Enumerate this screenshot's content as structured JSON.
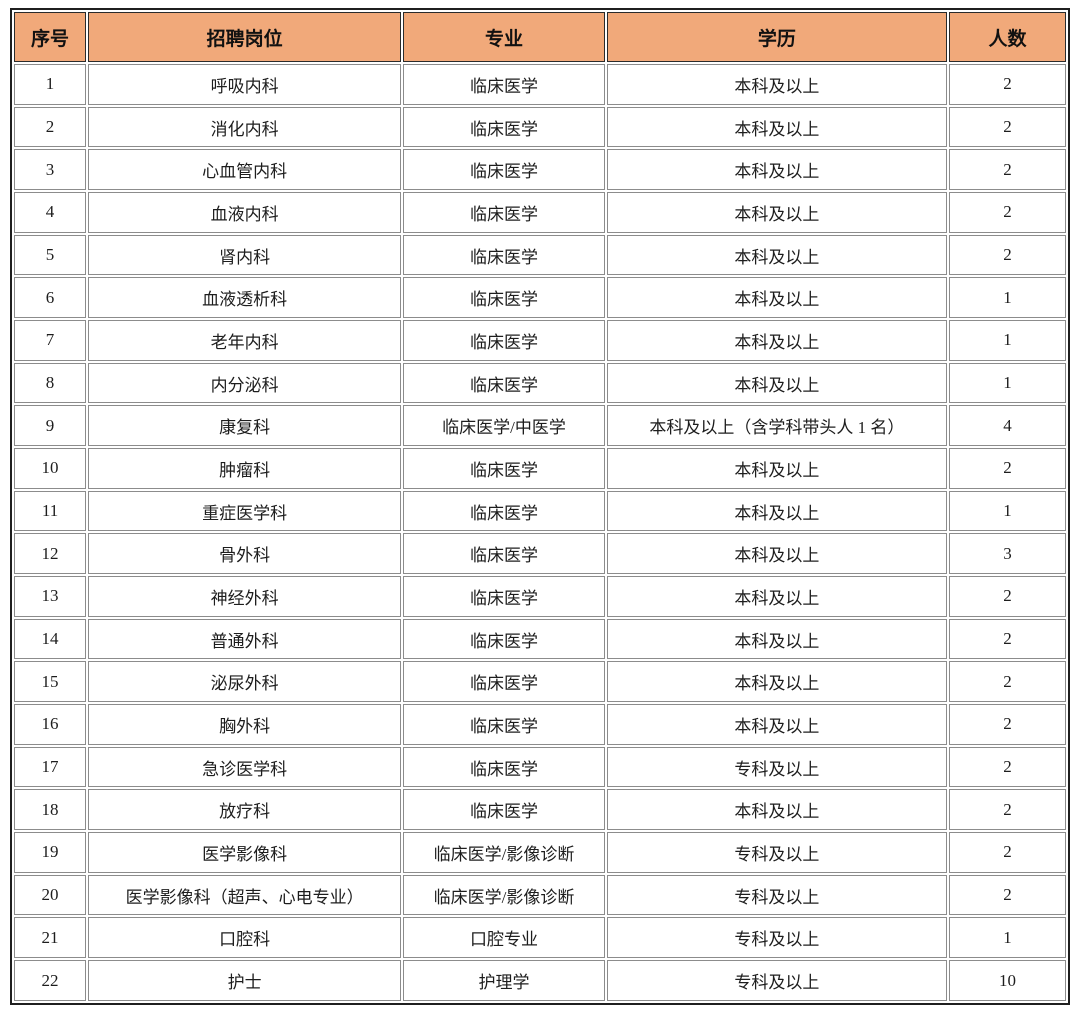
{
  "colors": {
    "header_bg": "#F1A97A",
    "outer_border": "#1f1f1f",
    "header_border": "#2b2b2b",
    "cell_border": "#8c8c8c",
    "text": "#1d1d1d"
  },
  "table": {
    "headers": {
      "no": "序号",
      "position": "招聘岗位",
      "major": "专业",
      "education": "学历",
      "count": "人数"
    },
    "rows": [
      {
        "no": "1",
        "position": "呼吸内科",
        "major": "临床医学",
        "education": "本科及以上",
        "count": "2"
      },
      {
        "no": "2",
        "position": "消化内科",
        "major": "临床医学",
        "education": "本科及以上",
        "count": "2"
      },
      {
        "no": "3",
        "position": "心血管内科",
        "major": "临床医学",
        "education": "本科及以上",
        "count": "2"
      },
      {
        "no": "4",
        "position": "血液内科",
        "major": "临床医学",
        "education": "本科及以上",
        "count": "2"
      },
      {
        "no": "5",
        "position": "肾内科",
        "major": "临床医学",
        "education": "本科及以上",
        "count": "2"
      },
      {
        "no": "6",
        "position": "血液透析科",
        "major": "临床医学",
        "education": "本科及以上",
        "count": "1"
      },
      {
        "no": "7",
        "position": "老年内科",
        "major": "临床医学",
        "education": "本科及以上",
        "count": "1"
      },
      {
        "no": "8",
        "position": "内分泌科",
        "major": "临床医学",
        "education": "本科及以上",
        "count": "1"
      },
      {
        "no": "9",
        "position": "康复科",
        "major": "临床医学/中医学",
        "education": "本科及以上（含学科带头人 1 名）",
        "count": "4"
      },
      {
        "no": "10",
        "position": "肿瘤科",
        "major": "临床医学",
        "education": "本科及以上",
        "count": "2"
      },
      {
        "no": "11",
        "position": "重症医学科",
        "major": "临床医学",
        "education": "本科及以上",
        "count": "1"
      },
      {
        "no": "12",
        "position": "骨外科",
        "major": "临床医学",
        "education": "本科及以上",
        "count": "3"
      },
      {
        "no": "13",
        "position": "神经外科",
        "major": "临床医学",
        "education": "本科及以上",
        "count": "2"
      },
      {
        "no": "14",
        "position": "普通外科",
        "major": "临床医学",
        "education": "本科及以上",
        "count": "2"
      },
      {
        "no": "15",
        "position": "泌尿外科",
        "major": "临床医学",
        "education": "本科及以上",
        "count": "2"
      },
      {
        "no": "16",
        "position": "胸外科",
        "major": "临床医学",
        "education": "本科及以上",
        "count": "2"
      },
      {
        "no": "17",
        "position": "急诊医学科",
        "major": "临床医学",
        "education": "专科及以上",
        "count": "2"
      },
      {
        "no": "18",
        "position": "放疗科",
        "major": "临床医学",
        "education": "本科及以上",
        "count": "2"
      },
      {
        "no": "19",
        "position": "医学影像科",
        "major": "临床医学/影像诊断",
        "education": "专科及以上",
        "count": "2"
      },
      {
        "no": "20",
        "position": "医学影像科（超声、心电专业）",
        "major": "临床医学/影像诊断",
        "education": "专科及以上",
        "count": "2"
      },
      {
        "no": "21",
        "position": "口腔科",
        "major": "口腔专业",
        "education": "专科及以上",
        "count": "1"
      },
      {
        "no": "22",
        "position": "护士",
        "major": "护理学",
        "education": "专科及以上",
        "count": "10"
      }
    ]
  }
}
